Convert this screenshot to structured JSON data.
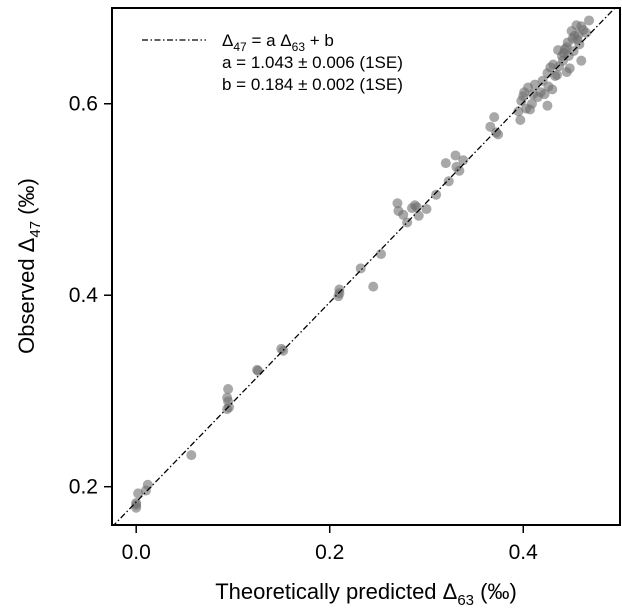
{
  "chart_data": {
    "type": "scatter",
    "title": "",
    "xlabel": {
      "main": "Theoretically predicted Δ",
      "sub": "63",
      "unit": " (‰)"
    },
    "ylabel": {
      "main": "Observed Δ",
      "sub": "47",
      "unit": " (‰)"
    },
    "xlim": [
      -0.025,
      0.5
    ],
    "ylim": [
      0.16,
      0.7
    ],
    "xticks": [
      0.0,
      0.2,
      0.4
    ],
    "xtick_labels": [
      "0.0",
      "0.2",
      "0.4"
    ],
    "yticks": [
      0.2,
      0.4,
      0.6
    ],
    "ytick_labels": [
      "0.2",
      "0.4",
      "0.6"
    ],
    "grid": false,
    "point_color": "#6e6e6e",
    "fit": {
      "a": 1.043,
      "b": 0.184,
      "style": "dash-dot",
      "color": "#000000"
    },
    "legend": {
      "position": "top-left",
      "line1": {
        "pre": "Δ",
        "sub1": "47",
        "mid": " = a Δ",
        "sub2": "63",
        "post": " + b"
      },
      "line2": "a = 1.043 ± 0.006 (1SE)",
      "line3": "b = 0.184 ± 0.002 (1SE)"
    },
    "points": [
      [
        0.0,
        0.181
      ],
      [
        0.0,
        0.183
      ],
      [
        0.0,
        0.178
      ],
      [
        0.002,
        0.193
      ],
      [
        0.01,
        0.196
      ],
      [
        0.012,
        0.202
      ],
      [
        0.057,
        0.233
      ],
      [
        0.094,
        0.293
      ],
      [
        0.095,
        0.302
      ],
      [
        0.095,
        0.289
      ],
      [
        0.094,
        0.281
      ],
      [
        0.096,
        0.283
      ],
      [
        0.125,
        0.322
      ],
      [
        0.126,
        0.321
      ],
      [
        0.15,
        0.344
      ],
      [
        0.152,
        0.342
      ],
      [
        0.209,
        0.399
      ],
      [
        0.21,
        0.406
      ],
      [
        0.21,
        0.402
      ],
      [
        0.232,
        0.428
      ],
      [
        0.245,
        0.409
      ],
      [
        0.253,
        0.443
      ],
      [
        0.27,
        0.496
      ],
      [
        0.271,
        0.488
      ],
      [
        0.276,
        0.484
      ],
      [
        0.28,
        0.476
      ],
      [
        0.285,
        0.491
      ],
      [
        0.288,
        0.494
      ],
      [
        0.29,
        0.492
      ],
      [
        0.292,
        0.483
      ],
      [
        0.3,
        0.49
      ],
      [
        0.31,
        0.505
      ],
      [
        0.32,
        0.538
      ],
      [
        0.323,
        0.519
      ],
      [
        0.33,
        0.546
      ],
      [
        0.331,
        0.534
      ],
      [
        0.334,
        0.53
      ],
      [
        0.338,
        0.541
      ],
      [
        0.366,
        0.576
      ],
      [
        0.37,
        0.586
      ],
      [
        0.372,
        0.57
      ],
      [
        0.374,
        0.568
      ],
      [
        0.395,
        0.592
      ],
      [
        0.397,
        0.583
      ],
      [
        0.398,
        0.603
      ],
      [
        0.4,
        0.608
      ],
      [
        0.401,
        0.612
      ],
      [
        0.403,
        0.595
      ],
      [
        0.405,
        0.617
      ],
      [
        0.407,
        0.594
      ],
      [
        0.409,
        0.6
      ],
      [
        0.41,
        0.61
      ],
      [
        0.412,
        0.62
      ],
      [
        0.415,
        0.607
      ],
      [
        0.418,
        0.612
      ],
      [
        0.42,
        0.624
      ],
      [
        0.422,
        0.61
      ],
      [
        0.425,
        0.632
      ],
      [
        0.426,
        0.618
      ],
      [
        0.428,
        0.638
      ],
      [
        0.43,
        0.615
      ],
      [
        0.431,
        0.641
      ],
      [
        0.433,
        0.629
      ],
      [
        0.435,
        0.63
      ],
      [
        0.436,
        0.656
      ],
      [
        0.437,
        0.639
      ],
      [
        0.44,
        0.65
      ],
      [
        0.441,
        0.645
      ],
      [
        0.442,
        0.653
      ],
      [
        0.443,
        0.657
      ],
      [
        0.445,
        0.659
      ],
      [
        0.446,
        0.664
      ],
      [
        0.447,
        0.65
      ],
      [
        0.448,
        0.637
      ],
      [
        0.45,
        0.676
      ],
      [
        0.451,
        0.668
      ],
      [
        0.452,
        0.655
      ],
      [
        0.453,
        0.671
      ],
      [
        0.455,
        0.682
      ],
      [
        0.456,
        0.667
      ],
      [
        0.457,
        0.672
      ],
      [
        0.458,
        0.662
      ],
      [
        0.46,
        0.681
      ],
      [
        0.462,
        0.677
      ],
      [
        0.465,
        0.674
      ],
      [
        0.468,
        0.687
      ],
      [
        0.445,
        0.633
      ],
      [
        0.425,
        0.598
      ],
      [
        0.46,
        0.645
      ]
    ]
  }
}
